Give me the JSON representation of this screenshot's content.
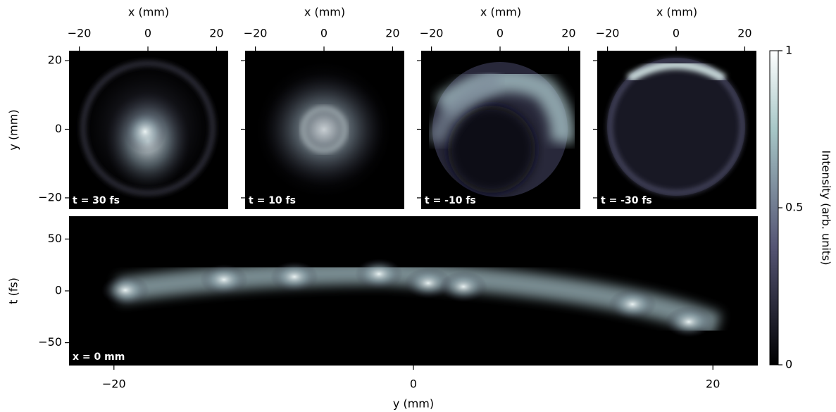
{
  "chart_data": [
    {
      "type": "heatmap",
      "xlabel": "x (mm)",
      "ylabel": "y (mm)",
      "annotation": "t = 30 fs",
      "xlim": [
        -23,
        23.4
      ],
      "ylim": [
        -23.3,
        22.9
      ],
      "xticks": [
        {
          "value": -20,
          "label": "−20"
        },
        0,
        20
      ],
      "yticks": [
        {
          "value": -20,
          "label": "−20"
        },
        0,
        20
      ]
    },
    {
      "type": "heatmap",
      "xlabel": "x (mm)",
      "annotation": "t = 10 fs",
      "xlim": [
        -23,
        23.4
      ],
      "ylim": [
        -23.3,
        22.9
      ],
      "xticks": [
        {
          "value": -20,
          "label": "−20"
        },
        0,
        20
      ]
    },
    {
      "type": "heatmap",
      "xlabel": "x (mm)",
      "annotation": "t = -10 fs",
      "xlim": [
        -23,
        23.4
      ],
      "ylim": [
        -23.3,
        22.9
      ],
      "xticks": [
        {
          "value": -20,
          "label": "−20"
        },
        0,
        20
      ]
    },
    {
      "type": "heatmap",
      "xlabel": "x (mm)",
      "annotation": "t = -30 fs",
      "xlim": [
        -23,
        23.4
      ],
      "ylim": [
        -23.3,
        22.9
      ],
      "xticks": [
        {
          "value": -20,
          "label": "−20"
        },
        0,
        20
      ]
    },
    {
      "type": "heatmap",
      "xlabel": "y (mm)",
      "ylabel": "t (fs)",
      "annotation": "x = 0 mm",
      "xlim": [
        -23,
        23
      ],
      "ylim": [
        -72,
        72
      ],
      "xticks": [
        {
          "value": -20,
          "label": "−20"
        },
        0,
        20
      ],
      "yticks": [
        {
          "value": -50,
          "label": "−50"
        },
        0,
        50
      ]
    },
    {
      "type": "colorbar",
      "label": "Intensity (arb. units)",
      "ylim": [
        0,
        1
      ],
      "yticks": [
        0,
        0.5,
        1
      ]
    }
  ]
}
